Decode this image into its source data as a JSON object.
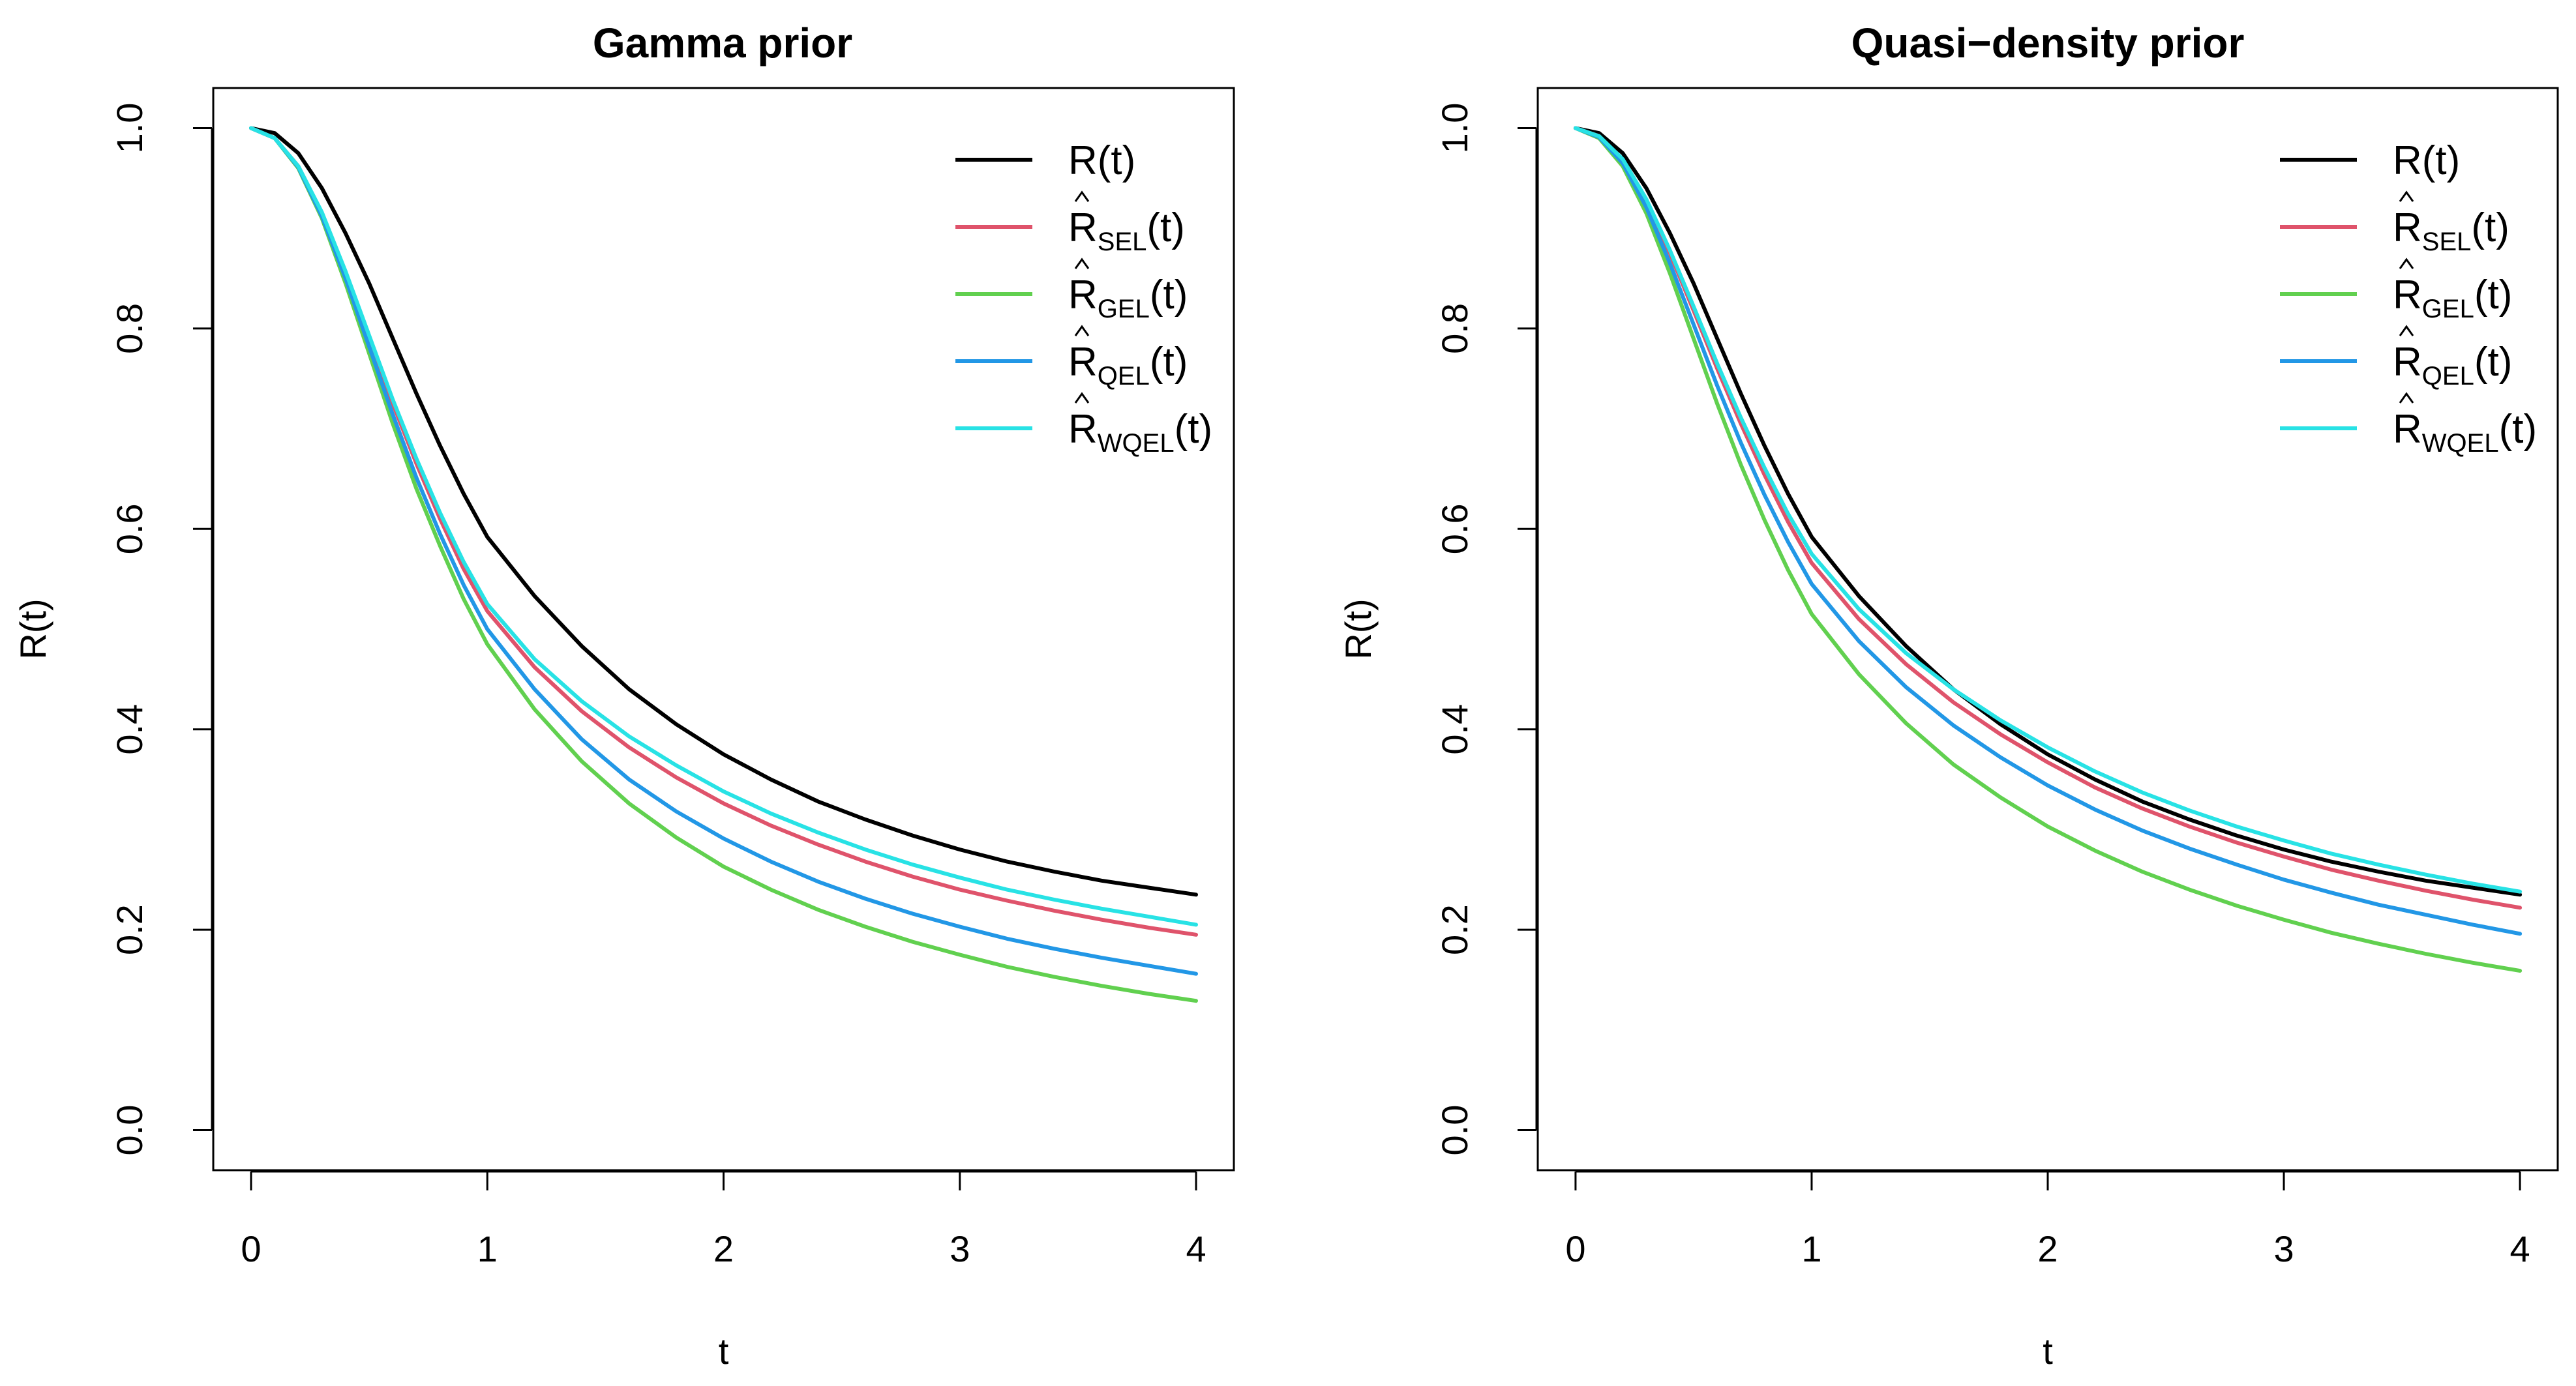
{
  "chart_data": [
    {
      "type": "line",
      "title": "Gamma prior",
      "xlabel": "t",
      "ylabel": "R(t)",
      "xlim": [
        0,
        4
      ],
      "ylim": [
        0,
        1
      ],
      "xticks": [
        "0",
        "1",
        "2",
        "3",
        "4"
      ],
      "yticks": [
        "0.0",
        "0.2",
        "0.4",
        "0.6",
        "0.8",
        "1.0"
      ],
      "legend_position": "top-right",
      "x": [
        0,
        0.1,
        0.2,
        0.3,
        0.4,
        0.5,
        0.6,
        0.7,
        0.8,
        0.9,
        1.0,
        1.2,
        1.4,
        1.6,
        1.8,
        2.0,
        2.2,
        2.4,
        2.6,
        2.8,
        3.0,
        3.2,
        3.4,
        3.6,
        3.8,
        4.0
      ],
      "series": [
        {
          "name": "R(t)",
          "legend_main": "R(t)",
          "legend_sub": "",
          "legend_after": "",
          "hat": false,
          "color": "#000000",
          "values": [
            1.0,
            0.995,
            0.975,
            0.94,
            0.895,
            0.845,
            0.79,
            0.735,
            0.683,
            0.635,
            0.592,
            0.533,
            0.483,
            0.44,
            0.405,
            0.375,
            0.35,
            0.328,
            0.31,
            0.294,
            0.28,
            0.268,
            0.258,
            0.249,
            0.242,
            0.235
          ]
        },
        {
          "name": "R_SEL(t)",
          "legend_main": "R",
          "legend_sub": "SEL",
          "legend_after": "(t)",
          "hat": true,
          "color": "#DF536B",
          "values": [
            1.0,
            0.99,
            0.962,
            0.915,
            0.855,
            0.79,
            0.725,
            0.665,
            0.61,
            0.56,
            0.518,
            0.462,
            0.418,
            0.382,
            0.352,
            0.326,
            0.304,
            0.285,
            0.268,
            0.253,
            0.24,
            0.229,
            0.219,
            0.21,
            0.202,
            0.195
          ]
        },
        {
          "name": "R_GEL(t)",
          "legend_main": "R",
          "legend_sub": "GEL",
          "legend_after": "(t)",
          "hat": true,
          "color": "#61D04F",
          "values": [
            1.0,
            0.99,
            0.96,
            0.91,
            0.845,
            0.775,
            0.705,
            0.64,
            0.583,
            0.53,
            0.485,
            0.42,
            0.368,
            0.326,
            0.292,
            0.263,
            0.24,
            0.22,
            0.203,
            0.188,
            0.175,
            0.163,
            0.153,
            0.144,
            0.136,
            0.129
          ]
        },
        {
          "name": "R_QEL(t)",
          "legend_main": "R",
          "legend_sub": "QEL",
          "legend_after": "(t)",
          "hat": true,
          "color": "#2297E6",
          "values": [
            1.0,
            0.99,
            0.961,
            0.912,
            0.85,
            0.782,
            0.714,
            0.651,
            0.595,
            0.544,
            0.5,
            0.44,
            0.39,
            0.35,
            0.318,
            0.291,
            0.268,
            0.248,
            0.231,
            0.216,
            0.203,
            0.191,
            0.181,
            0.172,
            0.164,
            0.156
          ]
        },
        {
          "name": "R_WQEL(t)",
          "legend_main": "R",
          "legend_sub": "WQEL",
          "legend_after": "(t)",
          "hat": true,
          "color": "#28E2E5",
          "values": [
            1.0,
            0.99,
            0.962,
            0.916,
            0.857,
            0.793,
            0.729,
            0.67,
            0.616,
            0.567,
            0.525,
            0.47,
            0.428,
            0.393,
            0.364,
            0.338,
            0.316,
            0.297,
            0.28,
            0.265,
            0.252,
            0.24,
            0.23,
            0.221,
            0.213,
            0.205
          ]
        }
      ]
    },
    {
      "type": "line",
      "title": "Quasi−density prior",
      "xlabel": "t",
      "ylabel": "R(t)",
      "xlim": [
        0,
        4
      ],
      "ylim": [
        0,
        1
      ],
      "xticks": [
        "0",
        "1",
        "2",
        "3",
        "4"
      ],
      "yticks": [
        "0.0",
        "0.2",
        "0.4",
        "0.6",
        "0.8",
        "1.0"
      ],
      "legend_position": "top-right",
      "x": [
        0,
        0.1,
        0.2,
        0.3,
        0.4,
        0.5,
        0.6,
        0.7,
        0.8,
        0.9,
        1.0,
        1.2,
        1.4,
        1.6,
        1.8,
        2.0,
        2.2,
        2.4,
        2.6,
        2.8,
        3.0,
        3.2,
        3.4,
        3.6,
        3.8,
        4.0
      ],
      "series": [
        {
          "name": "R(t)",
          "legend_main": "R(t)",
          "legend_sub": "",
          "legend_after": "",
          "hat": false,
          "color": "#000000",
          "values": [
            1.0,
            0.995,
            0.975,
            0.94,
            0.895,
            0.845,
            0.79,
            0.735,
            0.683,
            0.635,
            0.592,
            0.533,
            0.483,
            0.44,
            0.405,
            0.375,
            0.35,
            0.328,
            0.31,
            0.294,
            0.28,
            0.268,
            0.258,
            0.249,
            0.242,
            0.235
          ]
        },
        {
          "name": "R_SEL(t)",
          "legend_main": "R",
          "legend_sub": "SEL",
          "legend_after": "(t)",
          "hat": true,
          "color": "#DF536B",
          "values": [
            1.0,
            0.992,
            0.968,
            0.927,
            0.875,
            0.818,
            0.76,
            0.705,
            0.654,
            0.607,
            0.566,
            0.51,
            0.465,
            0.427,
            0.395,
            0.367,
            0.342,
            0.321,
            0.303,
            0.287,
            0.273,
            0.26,
            0.249,
            0.239,
            0.23,
            0.222
          ]
        },
        {
          "name": "R_GEL(t)",
          "legend_main": "R",
          "legend_sub": "GEL",
          "legend_after": "(t)",
          "hat": true,
          "color": "#61D04F",
          "values": [
            1.0,
            0.99,
            0.962,
            0.915,
            0.855,
            0.79,
            0.725,
            0.664,
            0.609,
            0.559,
            0.515,
            0.455,
            0.406,
            0.365,
            0.332,
            0.303,
            0.279,
            0.258,
            0.24,
            0.224,
            0.21,
            0.197,
            0.186,
            0.176,
            0.167,
            0.159
          ]
        },
        {
          "name": "R_QEL(t)",
          "legend_main": "R",
          "legend_sub": "QEL",
          "legend_after": "(t)",
          "hat": true,
          "color": "#2297E6",
          "values": [
            1.0,
            0.991,
            0.965,
            0.921,
            0.865,
            0.804,
            0.743,
            0.686,
            0.634,
            0.587,
            0.545,
            0.488,
            0.442,
            0.404,
            0.372,
            0.344,
            0.32,
            0.299,
            0.281,
            0.265,
            0.25,
            0.237,
            0.225,
            0.215,
            0.205,
            0.196
          ]
        },
        {
          "name": "R_WQEL(t)",
          "legend_main": "R",
          "legend_sub": "WQEL",
          "legend_after": "(t)",
          "hat": true,
          "color": "#28E2E5",
          "values": [
            1.0,
            0.992,
            0.969,
            0.929,
            0.878,
            0.822,
            0.765,
            0.711,
            0.661,
            0.615,
            0.575,
            0.52,
            0.476,
            0.44,
            0.409,
            0.382,
            0.358,
            0.337,
            0.319,
            0.303,
            0.289,
            0.276,
            0.265,
            0.255,
            0.246,
            0.238
          ]
        }
      ]
    }
  ]
}
